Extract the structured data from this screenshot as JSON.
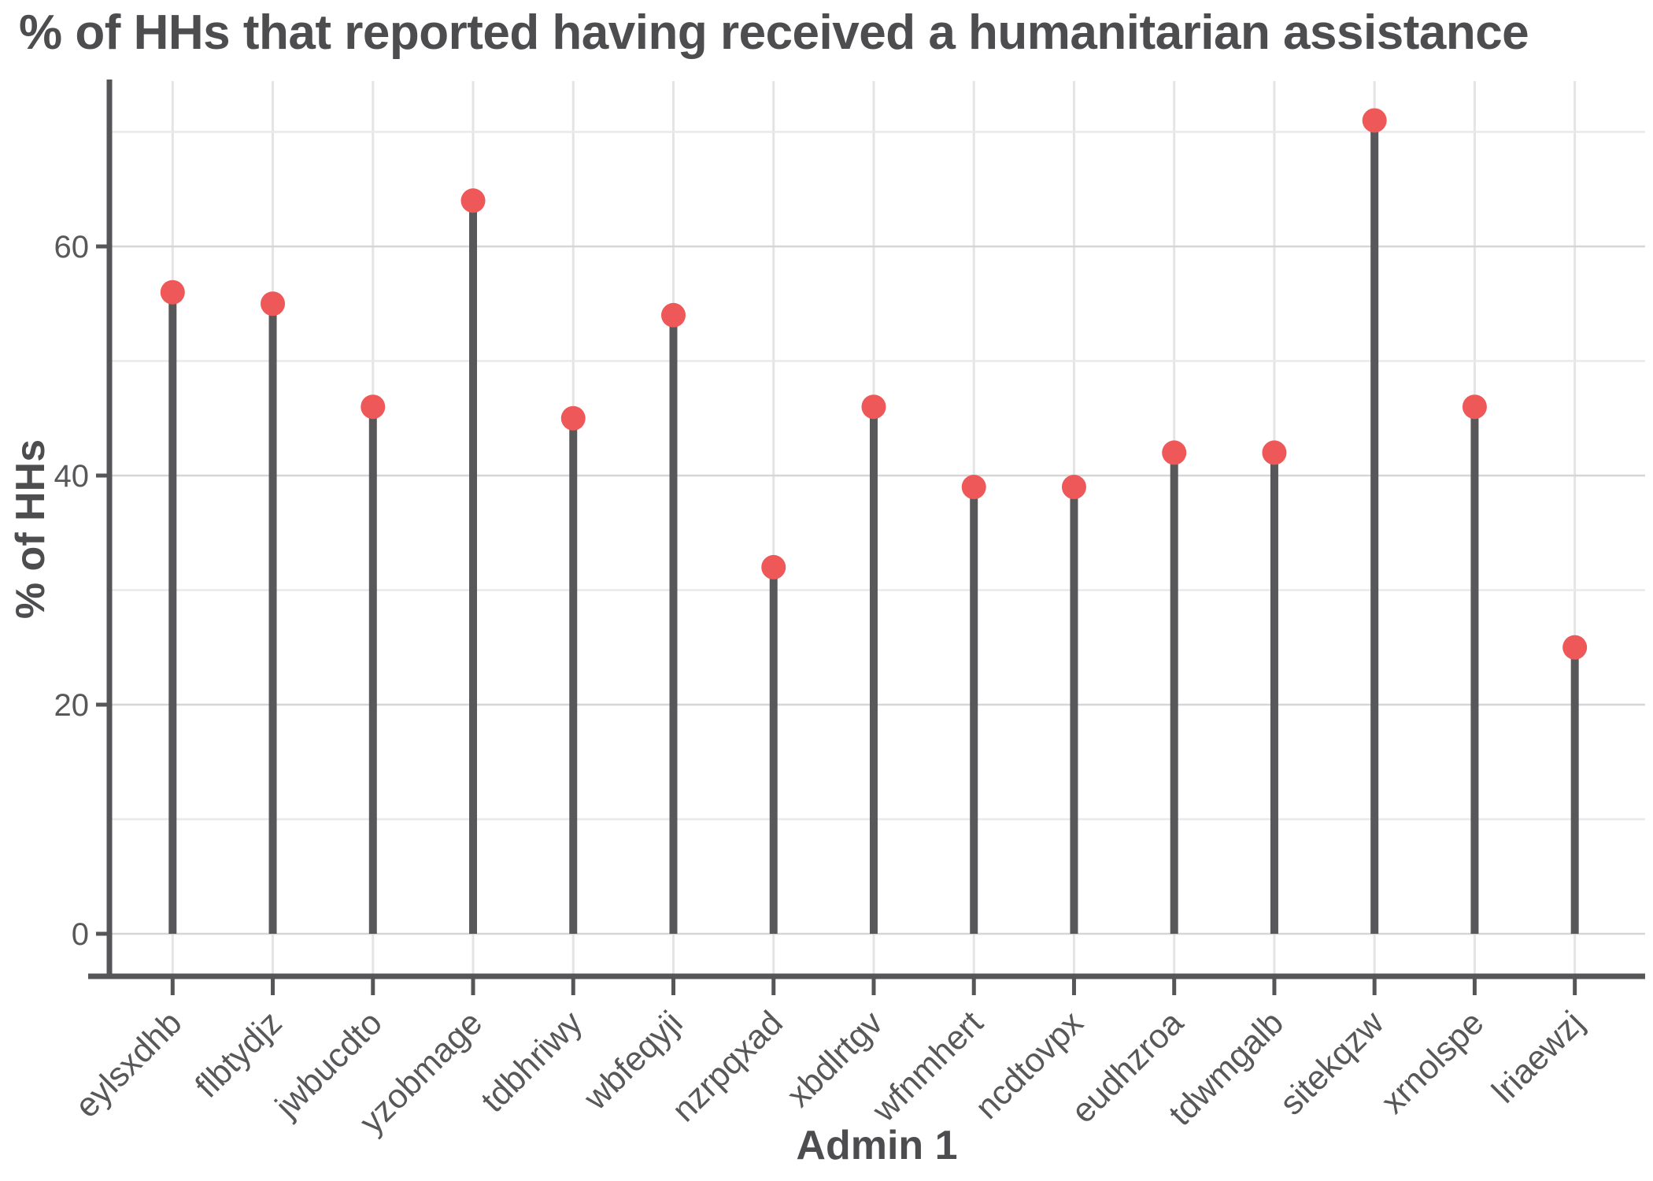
{
  "chart_data": {
    "type": "bar",
    "variant": "lollipop",
    "title": "% of HHs that reported having received a humanitarian assistance",
    "xlabel": "Admin 1",
    "ylabel": "% of HHs",
    "categories": [
      "eylsxdhb",
      "flbtydjz",
      "jwbucdto",
      "yzobmage",
      "tdbhriwy",
      "wbfeqyji",
      "nzrpqxad",
      "xbdlrtgv",
      "wfnmhert",
      "ncdtovpx",
      "eudhzroa",
      "tdwmgalb",
      "sitekqzw",
      "xrnolspe",
      "lriaewzj"
    ],
    "values": [
      56,
      55,
      46,
      64,
      45,
      54,
      32,
      46,
      39,
      39,
      42,
      42,
      71,
      46,
      25
    ],
    "yticks": [
      0,
      20,
      40,
      60
    ],
    "yticks_minor": [
      10,
      30,
      50,
      70
    ],
    "ylim": [
      0,
      74
    ],
    "grid": "major+minor, vertical per category",
    "legend": "none",
    "colors": {
      "point": "#ee5859",
      "stem": "#58585a",
      "axis": "#565658",
      "grid_major": "#d6d6d6",
      "grid_minor": "#e9e9e9",
      "grid_vertical": "#e4e4e4",
      "tick_text": "#58585a",
      "title_text": "#4d4d4f"
    }
  }
}
